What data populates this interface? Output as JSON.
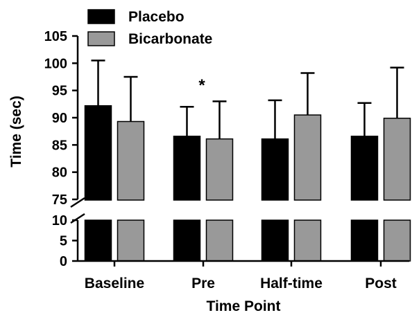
{
  "chart_data": {
    "type": "bar",
    "categories": [
      "Baseline",
      "Pre",
      "Half-time",
      "Post"
    ],
    "series": [
      {
        "name": "Placebo",
        "color": "#000000",
        "values": [
          92.2,
          86.6,
          86.1,
          86.6
        ],
        "error_upper": [
          8.3,
          5.4,
          7.1,
          6.1
        ]
      },
      {
        "name": "Bicarbonate",
        "color": "#999999",
        "values": [
          89.3,
          86.1,
          90.5,
          89.9
        ],
        "error_upper": [
          8.2,
          6.9,
          7.7,
          9.3
        ]
      }
    ],
    "xlabel": "Time Point",
    "ylabel": "Time (sec)",
    "axis_break": {
      "from": 10,
      "to": 75
    },
    "lower_ticks": [
      "0",
      "5",
      "10"
    ],
    "upper_ticks": [
      "75",
      "80",
      "85",
      "90",
      "95",
      "100",
      "105"
    ],
    "lower_ylim": [
      0,
      10
    ],
    "upper_ylim": [
      75,
      105
    ],
    "annotations": [
      {
        "text": "*",
        "category": "Pre",
        "series": "Bicarbonate",
        "value": 96.5
      }
    ],
    "legend_position": "top-left",
    "grid": false
  }
}
